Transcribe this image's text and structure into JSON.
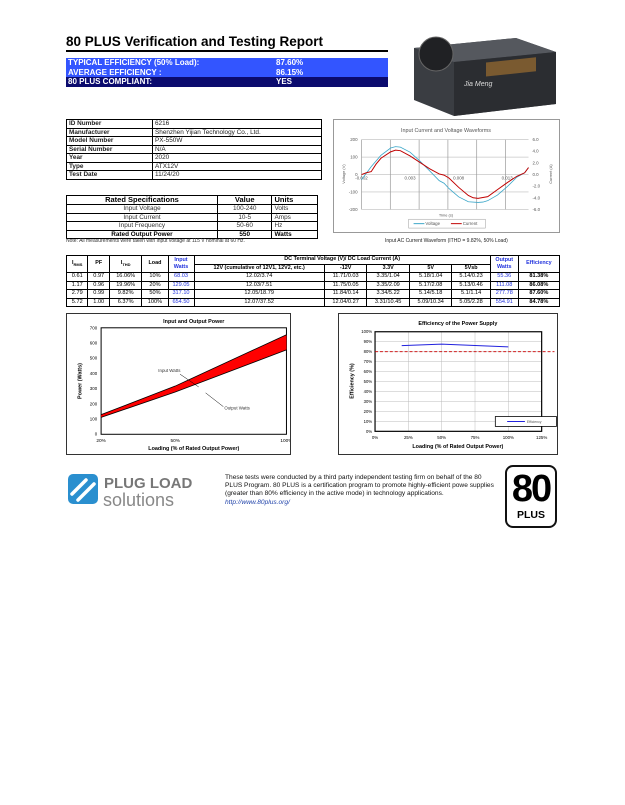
{
  "header": {
    "title": "80 PLUS Verification and Testing Report"
  },
  "summary": [
    {
      "label": "TYPICAL EFFICIENCY (50% Load):",
      "value": "87.60%"
    },
    {
      "label": "AVERAGE EFFICIENCY :",
      "value": "86.15%"
    },
    {
      "label": "80 PLUS COMPLIANT:",
      "value": "YES"
    }
  ],
  "info": [
    {
      "label": "ID Number",
      "value": "6216"
    },
    {
      "label": "Manufacturer",
      "value": "Shenzhen Yijian Technology Co., Ltd."
    },
    {
      "label": "Model Number",
      "value": "PX-550W"
    },
    {
      "label": "Serial Number",
      "value": "N/A"
    },
    {
      "label": "Year",
      "value": "2020"
    },
    {
      "label": "Type",
      "value": "ATX12V"
    },
    {
      "label": "Test Date",
      "value": "11/24/20"
    }
  ],
  "specs": {
    "headers": [
      "Rated Specifications",
      "Value",
      "Units"
    ],
    "rows": [
      [
        "Input Voltage",
        "100-240",
        "Volts"
      ],
      [
        "Input Current",
        "10-5",
        "Amps"
      ],
      [
        "Input Frequency",
        "50-60",
        "Hz"
      ],
      [
        "Rated Output Power",
        "550",
        "Watts"
      ]
    ]
  },
  "note": "Note: All measurements were taken with input voltage at 115 V nominal at 60 Hz.",
  "waveform_caption": "Input AC Current Waveform (ITHD = 9.82%, 50% Load)",
  "product_label": "Jia Meng",
  "table": {
    "headers": {
      "irms": "I",
      "irms_sub": "RMS",
      "pf": "PF",
      "ithd": "I",
      "ithd_sub": "THD",
      "load": "Load",
      "input": "Input Watts",
      "dc": "DC Terminal Voltage (V)/ DC Load Current (A)",
      "output": "Output Watts",
      "eff": "Efficiency"
    },
    "subheaders": [
      "12V (cumulative of 12V1, 12V2, etc.)",
      "-12V",
      "3.3V",
      "5V",
      "5Vsb"
    ],
    "rows": [
      [
        "0.61",
        "0.97",
        "16.06%",
        "10%",
        "68.03",
        "12.02/3.74",
        "11.71/0.03",
        "3.35/1.04",
        "5.18/1.04",
        "5.14/0.23",
        "55.36",
        "81.38%"
      ],
      [
        "1.17",
        "0.96",
        "19.96%",
        "20%",
        "129.05",
        "12.03/7.51",
        "11.75/0.05",
        "3.35/2.09",
        "5.17/2.08",
        "5.13/0.46",
        "111.08",
        "86.08%"
      ],
      [
        "2.79",
        "0.99",
        "9.82%",
        "50%",
        "317.10",
        "12.05/18.79",
        "11.84/0.14",
        "3.34/5.22",
        "5.14/5.18",
        "5.1/1.14",
        "277.78",
        "87.60%"
      ],
      [
        "5.72",
        "1.00",
        "6.37%",
        "100%",
        "654.50",
        "12.07/37.52",
        "12.04/0.27",
        "3.31/10.45",
        "5.09/10.34",
        "5.05/2.28",
        "554.91",
        "84.78%"
      ]
    ]
  },
  "chart_data": [
    {
      "type": "line",
      "title": "Input Current and Voltage Waveforms",
      "xlabel": "Time (s)",
      "ylabel": "Voltage (V)",
      "ylabel_right": "Current (A)",
      "xlim": [
        -0.002,
        0.0152
      ],
      "ylim": [
        -200,
        200
      ],
      "ylim_right": [
        -6,
        6
      ],
      "xticks": [
        "-0.002",
        "0.003",
        "0.008",
        "0.013"
      ],
      "yticks": [
        "200",
        "100",
        "0",
        "-100",
        "-200"
      ],
      "yticks_right": [
        "6.0",
        "4.0",
        "2.0",
        "0.0",
        "-2.0",
        "-4.0",
        "-6.0"
      ],
      "legend": "bottom",
      "grid": true,
      "series": [
        {
          "name": "Voltage",
          "axis": "left",
          "color": "#3aa6c8",
          "x": [
            -0.002,
            -0.001,
            0,
            0.001,
            0.0015,
            0.002,
            0.003,
            0.004,
            0.005,
            0.006,
            0.0065,
            0.007,
            0.008,
            0.009,
            0.01,
            0.0105,
            0.011,
            0.012,
            0.013,
            0.014,
            0.0148,
            0.0152
          ],
          "y": [
            -30,
            45,
            110,
            152,
            160,
            157,
            128,
            78,
            22,
            -35,
            -50,
            -80,
            -128,
            -156,
            -160,
            -158,
            -150,
            -118,
            -70,
            -15,
            10,
            40
          ]
        },
        {
          "name": "Current",
          "axis": "right",
          "color": "#c00000",
          "x": [
            -0.002,
            -0.0015,
            -0.001,
            -0.0005,
            0,
            0.001,
            0.0015,
            0.002,
            0.003,
            0.004,
            0.005,
            0.006,
            0.0065,
            0.007,
            0.008,
            0.009,
            0.0095,
            0.01,
            0.011,
            0.012,
            0.013,
            0.014,
            0.0148,
            0.0152
          ],
          "y": [
            0,
            0.3,
            0.5,
            1.8,
            2.8,
            3.9,
            4.2,
            4.1,
            3.2,
            2.1,
            1.0,
            0.1,
            -0.1,
            -0.6,
            -2.2,
            -3.6,
            -4.0,
            -4.1,
            -3.8,
            -2.6,
            -1.4,
            -0.3,
            0.3,
            1.2
          ]
        }
      ]
    },
    {
      "type": "area",
      "title": "Input and Output Power",
      "xlabel": "Loading (% of Rated Output Power)",
      "ylabel": "Power (Watts)",
      "categories": [
        "20%",
        "50%",
        "100%"
      ],
      "ylim": [
        0,
        700
      ],
      "yticks": [
        0,
        100,
        200,
        300,
        400,
        500,
        600,
        700
      ],
      "series": [
        {
          "name": "Input Watts",
          "values": [
            129.05,
            317.1,
            654.5
          ]
        },
        {
          "name": "Output Watts",
          "values": [
            111.08,
            277.78,
            554.91
          ]
        }
      ],
      "fill_color": "#ff0000"
    },
    {
      "type": "line",
      "title": "Efficiency of the Power Supply",
      "xlabel": "Loading (% of Rated Output Power)",
      "ylabel": "Efficiency (%)",
      "xlim": [
        0,
        125
      ],
      "ylim": [
        0,
        100
      ],
      "xticks": [
        "0%",
        "25%",
        "50%",
        "75%",
        "100%",
        "125%"
      ],
      "yticks": [
        "0%",
        "10%",
        "20%",
        "30%",
        "40%",
        "50%",
        "60%",
        "70%",
        "80%",
        "90%",
        "100%"
      ],
      "series": [
        {
          "name": "Efficiency",
          "color": "#2222dd",
          "x": [
            20,
            50,
            100
          ],
          "y": [
            86.08,
            87.6,
            84.78
          ]
        }
      ],
      "reference_line": {
        "y": 80,
        "color": "#cc0000",
        "style": "dashed"
      },
      "legend": "bottom-right",
      "grid": true
    }
  ],
  "footer": {
    "logo_line1": "PLUG LOAD",
    "logo_line2": "solutions",
    "text": "These tests were conducted by a third party independent testing firm on behalf of the 80 PLUS Program. 80 PLUS is a certification program to promote highly-efficient powe supplies (greater than 80% efficiency in the active mode) in technology applications.",
    "link": "http://www.80plus.org/",
    "badge_number": "80",
    "badge_text": "PLUS"
  },
  "colors": {
    "banner_light": "#3355ff",
    "banner_dark": "#0b0b6e",
    "blue_values": "#2233dd",
    "area_fill": "#ff0000"
  }
}
